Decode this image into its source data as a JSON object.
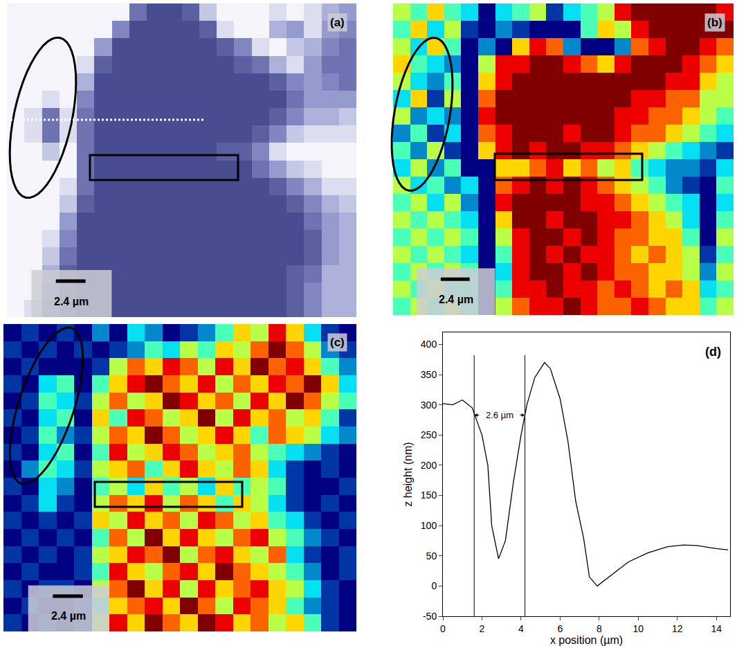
{
  "chart_data": [
    {
      "type": "heatmap",
      "title": "(a)",
      "color": "#343a80",
      "tick_labels": false,
      "zlim": [
        0,
        9
      ],
      "annotations": [
        {
          "text": "2.4 µm"
        }
      ],
      "cells": [
        [
          9,
          9,
          9,
          9,
          9,
          9,
          9,
          3,
          1,
          1,
          2,
          7,
          9,
          9,
          9,
          8,
          9,
          8,
          6,
          5
        ],
        [
          9,
          9,
          9,
          9,
          9,
          9,
          4,
          1,
          1,
          1,
          1,
          2,
          8,
          9,
          9,
          6,
          5,
          8,
          5,
          4
        ],
        [
          9,
          9,
          9,
          9,
          9,
          5,
          1,
          1,
          1,
          1,
          1,
          1,
          2,
          4,
          8,
          9,
          7,
          6,
          4,
          3
        ],
        [
          9,
          9,
          9,
          9,
          8,
          2,
          1,
          1,
          1,
          1,
          1,
          1,
          1,
          2,
          3,
          6,
          8,
          5,
          3,
          3
        ],
        [
          9,
          9,
          9,
          9,
          6,
          1,
          1,
          1,
          1,
          1,
          1,
          1,
          1,
          1,
          1,
          2,
          4,
          5,
          4,
          3
        ],
        [
          9,
          9,
          8,
          9,
          4,
          1,
          1,
          1,
          1,
          1,
          1,
          1,
          1,
          1,
          1,
          1,
          3,
          5,
          5,
          5
        ],
        [
          9,
          8,
          3,
          8,
          3,
          1,
          1,
          1,
          1,
          1,
          1,
          1,
          1,
          1,
          1,
          2,
          4,
          6,
          6,
          7
        ],
        [
          9,
          8,
          3,
          8,
          3,
          1,
          1,
          1,
          1,
          1,
          1,
          1,
          1,
          1,
          2,
          4,
          7,
          8,
          8,
          8
        ],
        [
          9,
          9,
          7,
          9,
          3,
          1,
          1,
          1,
          1,
          1,
          1,
          1,
          2,
          2,
          4,
          8,
          9,
          9,
          9,
          9
        ],
        [
          9,
          9,
          9,
          9,
          3,
          1,
          1,
          1,
          1,
          1,
          1,
          1,
          1,
          1,
          3,
          5,
          7,
          8,
          9,
          9
        ],
        [
          9,
          9,
          9,
          8,
          3,
          1,
          1,
          1,
          1,
          1,
          1,
          1,
          1,
          1,
          1,
          2,
          4,
          6,
          8,
          8
        ],
        [
          9,
          9,
          9,
          7,
          2,
          1,
          1,
          1,
          1,
          1,
          1,
          1,
          1,
          1,
          1,
          1,
          2,
          4,
          6,
          7
        ],
        [
          9,
          9,
          9,
          5,
          1,
          1,
          1,
          1,
          1,
          1,
          1,
          1,
          1,
          1,
          1,
          1,
          1,
          3,
          5,
          6
        ],
        [
          9,
          9,
          8,
          4,
          1,
          1,
          1,
          1,
          1,
          1,
          1,
          1,
          1,
          1,
          1,
          1,
          1,
          2,
          5,
          6
        ],
        [
          9,
          9,
          7,
          3,
          1,
          1,
          1,
          1,
          1,
          1,
          1,
          1,
          1,
          1,
          1,
          1,
          1,
          2,
          5,
          6
        ],
        [
          9,
          9,
          6,
          2,
          1,
          1,
          1,
          1,
          1,
          1,
          1,
          1,
          1,
          1,
          1,
          1,
          2,
          3,
          6,
          6
        ],
        [
          9,
          9,
          5,
          2,
          1,
          1,
          1,
          1,
          1,
          1,
          1,
          1,
          1,
          1,
          1,
          1,
          2,
          4,
          6,
          6
        ],
        [
          9,
          8,
          4,
          2,
          1,
          1,
          1,
          1,
          1,
          1,
          1,
          1,
          1,
          1,
          1,
          1,
          2,
          4,
          6,
          6
        ]
      ]
    },
    {
      "type": "heatmap",
      "title": "(b)",
      "color": "Jet",
      "tick_labels": false,
      "zlim": [
        0,
        9
      ],
      "annotations": [
        {
          "text": "2.4 µm"
        }
      ],
      "cells": [
        [
          5,
          4,
          6,
          4,
          3,
          0,
          3,
          4,
          5,
          1,
          3,
          4,
          5,
          8,
          9,
          9,
          9,
          9,
          9,
          8
        ],
        [
          4,
          6,
          3,
          5,
          1,
          0,
          2,
          1,
          0,
          0,
          0,
          4,
          6,
          5,
          8,
          9,
          9,
          9,
          9,
          9
        ],
        [
          5,
          3,
          6,
          4,
          0,
          2,
          0,
          6,
          8,
          7,
          2,
          0,
          0,
          2,
          7,
          8,
          9,
          9,
          8,
          7
        ],
        [
          6,
          4,
          3,
          2,
          0,
          5,
          8,
          8,
          9,
          9,
          8,
          7,
          6,
          8,
          9,
          9,
          9,
          8,
          7,
          6
        ],
        [
          5,
          3,
          2,
          4,
          0,
          6,
          8,
          9,
          9,
          9,
          9,
          9,
          9,
          9,
          9,
          9,
          8,
          8,
          6,
          5
        ],
        [
          3,
          6,
          1,
          5,
          0,
          7,
          9,
          9,
          9,
          9,
          9,
          9,
          9,
          9,
          8,
          8,
          7,
          7,
          5,
          5
        ],
        [
          5,
          2,
          3,
          2,
          0,
          8,
          9,
          9,
          9,
          9,
          9,
          9,
          9,
          8,
          8,
          7,
          7,
          6,
          5,
          4
        ],
        [
          2,
          4,
          1,
          3,
          0,
          7,
          8,
          9,
          9,
          9,
          8,
          9,
          9,
          8,
          7,
          7,
          6,
          5,
          4,
          3
        ],
        [
          4,
          2,
          5,
          1,
          0,
          6,
          8,
          9,
          8,
          9,
          9,
          8,
          8,
          7,
          6,
          5,
          4,
          3,
          2,
          1
        ],
        [
          3,
          5,
          2,
          4,
          0,
          0,
          6,
          6,
          7,
          8,
          6,
          7,
          5,
          6,
          4,
          3,
          2,
          2,
          1,
          3
        ],
        [
          5,
          3,
          4,
          2,
          3,
          0,
          7,
          8,
          9,
          8,
          9,
          8,
          7,
          6,
          5,
          4,
          2,
          1,
          0,
          4
        ],
        [
          4,
          5,
          3,
          5,
          2,
          0,
          8,
          9,
          9,
          9,
          9,
          8,
          8,
          7,
          6,
          5,
          4,
          3,
          0,
          3
        ],
        [
          5,
          4,
          5,
          4,
          3,
          0,
          6,
          9,
          9,
          8,
          9,
          9,
          8,
          8,
          7,
          6,
          5,
          3,
          0,
          4
        ],
        [
          4,
          5,
          4,
          5,
          4,
          0,
          5,
          8,
          9,
          9,
          8,
          9,
          8,
          7,
          7,
          6,
          6,
          4,
          0,
          5
        ],
        [
          5,
          4,
          5,
          4,
          3,
          0,
          4,
          8,
          9,
          8,
          9,
          8,
          8,
          7,
          6,
          7,
          6,
          5,
          1,
          4
        ],
        [
          4,
          5,
          4,
          5,
          4,
          0,
          3,
          8,
          9,
          9,
          8,
          9,
          8,
          7,
          7,
          6,
          6,
          5,
          2,
          5
        ],
        [
          5,
          4,
          5,
          4,
          4,
          0,
          4,
          8,
          8,
          9,
          8,
          8,
          7,
          8,
          7,
          6,
          7,
          6,
          3,
          4
        ],
        [
          4,
          5,
          4,
          5,
          4,
          0,
          5,
          7,
          8,
          8,
          9,
          8,
          7,
          7,
          8,
          7,
          6,
          6,
          4,
          5
        ]
      ]
    },
    {
      "type": "heatmap",
      "title": "(c)",
      "color": "Jet",
      "tick_labels": false,
      "zlim": [
        0,
        9
      ],
      "annotations": [
        {
          "text": "2.4 µm"
        }
      ],
      "cells": [
        [
          0,
          1,
          0,
          1,
          0,
          2,
          0,
          3,
          2,
          0,
          1,
          2,
          4,
          6,
          5,
          8,
          6,
          3,
          1,
          0
        ],
        [
          1,
          0,
          1,
          0,
          1,
          0,
          1,
          2,
          4,
          3,
          5,
          4,
          6,
          5,
          7,
          9,
          7,
          5,
          2,
          1
        ],
        [
          0,
          1,
          0,
          0,
          0,
          1,
          5,
          7,
          6,
          8,
          7,
          5,
          8,
          6,
          9,
          7,
          8,
          6,
          4,
          2
        ],
        [
          1,
          0,
          3,
          4,
          0,
          4,
          6,
          8,
          9,
          7,
          6,
          8,
          5,
          7,
          6,
          8,
          7,
          9,
          6,
          3
        ],
        [
          0,
          1,
          4,
          3,
          1,
          5,
          7,
          5,
          6,
          9,
          8,
          6,
          7,
          5,
          8,
          6,
          9,
          7,
          5,
          4
        ],
        [
          1,
          0,
          3,
          4,
          0,
          6,
          4,
          8,
          7,
          5,
          6,
          9,
          5,
          8,
          6,
          7,
          5,
          6,
          4,
          1
        ],
        [
          0,
          1,
          4,
          2,
          1,
          5,
          7,
          6,
          9,
          7,
          5,
          6,
          8,
          6,
          4,
          7,
          6,
          5,
          3,
          2
        ],
        [
          1,
          0,
          3,
          4,
          0,
          4,
          8,
          5,
          6,
          8,
          7,
          5,
          6,
          7,
          5,
          4,
          3,
          2,
          1,
          0
        ],
        [
          0,
          2,
          4,
          3,
          1,
          5,
          6,
          7,
          4,
          6,
          8,
          6,
          5,
          7,
          6,
          3,
          1,
          0,
          1,
          0
        ],
        [
          1,
          0,
          3,
          2,
          0,
          4,
          5,
          3,
          6,
          4,
          5,
          3,
          6,
          4,
          5,
          4,
          1,
          0,
          0,
          1
        ],
        [
          0,
          1,
          3,
          1,
          0,
          5,
          7,
          6,
          8,
          5,
          7,
          6,
          4,
          6,
          5,
          3,
          1,
          0,
          1,
          0
        ],
        [
          1,
          0,
          1,
          0,
          1,
          6,
          5,
          8,
          6,
          7,
          5,
          8,
          7,
          5,
          6,
          4,
          3,
          1,
          0,
          1
        ],
        [
          0,
          1,
          0,
          1,
          0,
          4,
          7,
          5,
          9,
          6,
          8,
          6,
          5,
          7,
          8,
          5,
          4,
          2,
          1,
          0
        ],
        [
          1,
          0,
          1,
          0,
          1,
          5,
          6,
          8,
          7,
          9,
          5,
          7,
          8,
          6,
          5,
          7,
          3,
          1,
          0,
          1
        ],
        [
          0,
          1,
          0,
          0,
          1,
          4,
          8,
          6,
          5,
          7,
          8,
          6,
          9,
          7,
          6,
          5,
          4,
          2,
          0,
          1
        ],
        [
          1,
          0,
          1,
          1,
          0,
          5,
          7,
          9,
          6,
          8,
          5,
          8,
          6,
          7,
          8,
          6,
          5,
          3,
          1,
          0
        ],
        [
          0,
          1,
          0,
          0,
          1,
          4,
          6,
          7,
          8,
          6,
          9,
          7,
          5,
          8,
          7,
          6,
          4,
          2,
          1,
          0
        ],
        [
          1,
          0,
          1,
          0,
          1,
          5,
          8,
          6,
          9,
          7,
          6,
          9,
          8,
          6,
          7,
          5,
          6,
          4,
          1,
          0
        ]
      ]
    },
    {
      "type": "line",
      "title": "(d)",
      "color": "#000000",
      "grid": false,
      "x_label": "x position (µm)",
      "y_label": "z height (nm)",
      "x": [
        0,
        0.5,
        1,
        1.5,
        2,
        2.3,
        2.5,
        2.85,
        3.2,
        3.6,
        4.0,
        4.3,
        4.7,
        5.2,
        5.5,
        6.0,
        6.4,
        6.8,
        7.2,
        7.5,
        7.9,
        8.5,
        9.5,
        10.5,
        11.5,
        12.3,
        13,
        14,
        14.6
      ],
      "values": [
        302,
        300,
        308,
        295,
        250,
        200,
        100,
        45,
        75,
        170,
        250,
        300,
        345,
        370,
        360,
        310,
        240,
        140,
        80,
        15,
        0,
        15,
        40,
        55,
        65,
        68,
        67,
        62,
        60
      ],
      "xlim": [
        0,
        14.7
      ],
      "xticks": [
        0,
        2,
        4,
        6,
        8,
        10,
        12,
        14
      ],
      "ylim": [
        -50,
        420
      ],
      "yticks": [
        -50,
        0,
        50,
        100,
        150,
        200,
        250,
        300,
        350,
        400
      ],
      "annotations": [
        {
          "text": "2.6 µm",
          "x": [
            1.6,
            4.2
          ],
          "y": 283
        }
      ]
    }
  ]
}
